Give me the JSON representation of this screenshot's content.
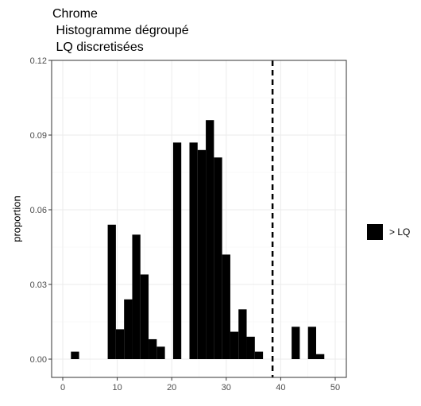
{
  "chart_data": {
    "type": "bar",
    "title_lines": [
      "Chrome",
      " Histogramme dégroupé",
      " LQ discretisées"
    ],
    "xlabel": "",
    "ylabel": "proportion",
    "xlim": [
      0,
      50
    ],
    "ylim": [
      0,
      0.12
    ],
    "x_ticks": [
      0,
      10,
      20,
      30,
      40,
      50
    ],
    "y_ticks": [
      0.0,
      0.03,
      0.06,
      0.09,
      0.12
    ],
    "y_tick_labels": [
      "0.00",
      "0.03",
      "0.06",
      "0.09",
      "0.12"
    ],
    "grid": true,
    "bin_width": 1.5,
    "vline": {
      "x": 38.5,
      "style": "dashed"
    },
    "bars": [
      {
        "x": 2.25,
        "y": 0.003
      },
      {
        "x": 9.0,
        "y": 0.054
      },
      {
        "x": 10.5,
        "y": 0.012
      },
      {
        "x": 12.0,
        "y": 0.024
      },
      {
        "x": 13.5,
        "y": 0.05
      },
      {
        "x": 15.0,
        "y": 0.034
      },
      {
        "x": 16.5,
        "y": 0.008
      },
      {
        "x": 18.0,
        "y": 0.005
      },
      {
        "x": 21.0,
        "y": 0.087
      },
      {
        "x": 24.0,
        "y": 0.087
      },
      {
        "x": 25.5,
        "y": 0.084
      },
      {
        "x": 27.0,
        "y": 0.096
      },
      {
        "x": 28.5,
        "y": 0.081
      },
      {
        "x": 30.0,
        "y": 0.042
      },
      {
        "x": 31.5,
        "y": 0.011
      },
      {
        "x": 33.0,
        "y": 0.02
      },
      {
        "x": 34.5,
        "y": 0.009
      },
      {
        "x": 36.0,
        "y": 0.003
      },
      {
        "x": 42.75,
        "y": 0.013
      },
      {
        "x": 45.75,
        "y": 0.013
      },
      {
        "x": 47.25,
        "y": 0.002
      }
    ],
    "series": [
      {
        "name": "> LQ",
        "color": "#000000"
      }
    ],
    "legend_position": "right",
    "colors": {
      "bar": "#000000",
      "grid_major": "#ebebeb",
      "grid_minor": "#f5f5f5",
      "panel_border": "#333333",
      "tick_text": "#4d4d4d"
    }
  }
}
